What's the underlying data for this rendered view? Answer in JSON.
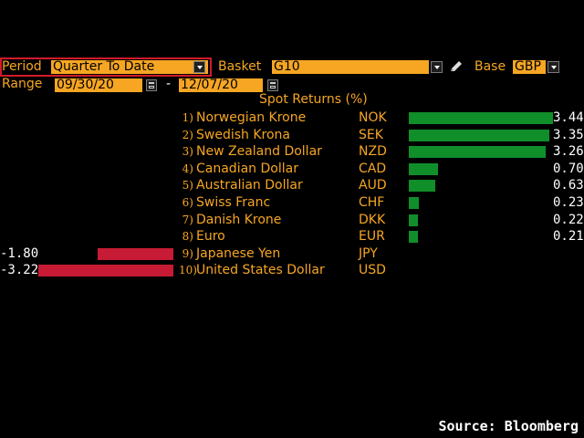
{
  "controls": {
    "period_label": "Period",
    "period_value": "Quarter To Date",
    "basket_label": "Basket",
    "basket_value": "G10",
    "base_label": "Base",
    "base_value": "GBP",
    "range_label": "Range",
    "range_start": "09/30/20",
    "range_sep": "-",
    "range_end": "12/07/20"
  },
  "chart_data": {
    "type": "bar",
    "title": "Spot Returns (%)",
    "rows": [
      {
        "rank": "1)",
        "name": "Norwegian Krone",
        "code": "NOK",
        "value": 3.44,
        "label": "3.44"
      },
      {
        "rank": "2)",
        "name": "Swedish Krona",
        "code": "SEK",
        "value": 3.35,
        "label": "3.35"
      },
      {
        "rank": "3)",
        "name": "New Zealand Dollar",
        "code": "NZD",
        "value": 3.26,
        "label": "3.26"
      },
      {
        "rank": "4)",
        "name": "Canadian Dollar",
        "code": "CAD",
        "value": 0.7,
        "label": "0.70"
      },
      {
        "rank": "5)",
        "name": "Australian Dollar",
        "code": "AUD",
        "value": 0.63,
        "label": "0.63"
      },
      {
        "rank": "6)",
        "name": "Swiss Franc",
        "code": "CHF",
        "value": 0.23,
        "label": "0.23"
      },
      {
        "rank": "7)",
        "name": "Danish Krone",
        "code": "DKK",
        "value": 0.22,
        "label": "0.22"
      },
      {
        "rank": "8)",
        "name": "Euro",
        "code": "EUR",
        "value": 0.21,
        "label": "0.21"
      },
      {
        "rank": "9)",
        "name": "Japanese Yen",
        "code": "JPY",
        "value": -1.8,
        "label": "-1.80"
      },
      {
        "rank": "10)",
        "name": "United States Dollar",
        "code": "USD",
        "value": -3.22,
        "label": "-3.22"
      }
    ],
    "colors": {
      "positive": "#108e2a",
      "negative": "#c71b35"
    }
  },
  "footer": {
    "source": "Source: Bloomberg"
  }
}
